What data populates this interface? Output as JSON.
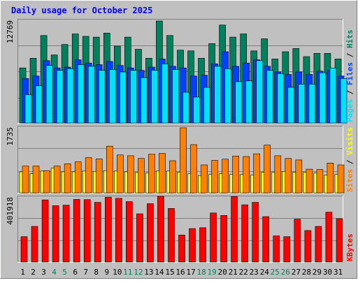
{
  "colors": {
    "background": "#C0C0C0",
    "title": "#0000FF",
    "hits": "#00805C",
    "files": "#0040FF",
    "pages": "#00E0FF",
    "visits": "#FFFF00",
    "sites": "#FF8000",
    "kbytes": "#FF0000",
    "weekday_label": "#000000",
    "weekend_label": "#00805C"
  },
  "chart_data": {
    "type": "bar",
    "title": "Daily usage for October 2025",
    "days": [
      "1",
      "2",
      "3",
      "4",
      "5",
      "6",
      "7",
      "8",
      "9",
      "10",
      "11",
      "12",
      "13",
      "14",
      "15",
      "16",
      "17",
      "18",
      "19",
      "20",
      "21",
      "22",
      "23",
      "24",
      "25",
      "26",
      "27",
      "28",
      "29",
      "30",
      "31"
    ],
    "weekend_days": [
      "4",
      "5",
      "11",
      "12",
      "18",
      "19",
      "25",
      "26"
    ],
    "panels": [
      {
        "id": "hits-files-pages",
        "scale_label": "12769",
        "ymax": 12769,
        "legend": [
          {
            "text": "Hits",
            "color_key": "hits"
          },
          {
            "text": "Files",
            "color_key": "files"
          },
          {
            "text": "Pages",
            "color_key": "pages"
          }
        ],
        "series": [
          {
            "name": "Hits",
            "color_key": "hits",
            "values": [
              6800,
              8000,
              10800,
              8400,
              9700,
              11000,
              10700,
              10600,
              11100,
              9500,
              10600,
              9100,
              8000,
              12600,
              10800,
              9000,
              8900,
              8000,
              9800,
              12100,
              10600,
              11000,
              8900,
              10400,
              7900,
              8800,
              9200,
              8200,
              8600,
              8600,
              7900
            ]
          },
          {
            "name": "Files",
            "color_key": "files",
            "values": [
              5500,
              5800,
              7700,
              6800,
              6900,
              7800,
              7400,
              7200,
              7600,
              7100,
              6800,
              6500,
              6900,
              7900,
              7000,
              6800,
              5800,
              5900,
              7300,
              8800,
              7000,
              7400,
              7800,
              7000,
              6300,
              6000,
              6300,
              6000,
              6400,
              6500,
              5800
            ]
          },
          {
            "name": "Pages",
            "color_key": "pages",
            "values": [
              3500,
              4600,
              7100,
              6500,
              6700,
              7200,
              7000,
              6500,
              6600,
              6300,
              6500,
              5600,
              6500,
              7300,
              6600,
              3800,
              3200,
              4400,
              7000,
              6700,
              5100,
              5200,
              7700,
              6500,
              6100,
              4400,
              4800,
              4800,
              6200,
              6800,
              5500
            ]
          }
        ]
      },
      {
        "id": "visits-sites",
        "scale_label": "1735",
        "ymax": 1735,
        "legend": [
          {
            "text": "Visits",
            "color_key": "visits"
          },
          {
            "text": "Sites",
            "color_key": "sites"
          }
        ],
        "series": [
          {
            "name": "Visits",
            "color_key": "visits",
            "values": [
              550,
              500,
              570,
              650,
              550,
              550,
              570,
              560,
              580,
              570,
              550,
              530,
              520,
              570,
              570,
              540,
              500,
              450,
              480,
              500,
              480,
              480,
              470,
              540,
              540,
              560,
              540,
              540,
              520,
              470,
              480
            ]
          },
          {
            "name": "Sites",
            "color_key": "sites",
            "values": [
              700,
              700,
              580,
              700,
              760,
              810,
              920,
              890,
              1220,
              990,
              970,
              900,
              1010,
              1030,
              840,
              1700,
              1260,
              730,
              850,
              880,
              960,
              950,
              1020,
              1250,
              970,
              900,
              860,
              620,
              610,
              780,
              730
            ]
          }
        ]
      },
      {
        "id": "kbytes",
        "scale_label": "401918",
        "ymax": 401918,
        "legend": [
          {
            "text": "KBytes",
            "color_key": "kbytes"
          }
        ],
        "series": [
          {
            "name": "KBytes",
            "color_key": "kbytes",
            "values": [
              155000,
              218000,
              380000,
              345000,
              348000,
              383000,
              382000,
              365000,
              397000,
              390000,
              370000,
              295000,
              357000,
              402000,
              328000,
              165000,
              205000,
              210000,
              300000,
              285000,
              400000,
              350000,
              365000,
              278000,
              160000,
              155000,
              262000,
              193000,
              218000,
              305000,
              265000
            ]
          }
        ]
      }
    ]
  }
}
